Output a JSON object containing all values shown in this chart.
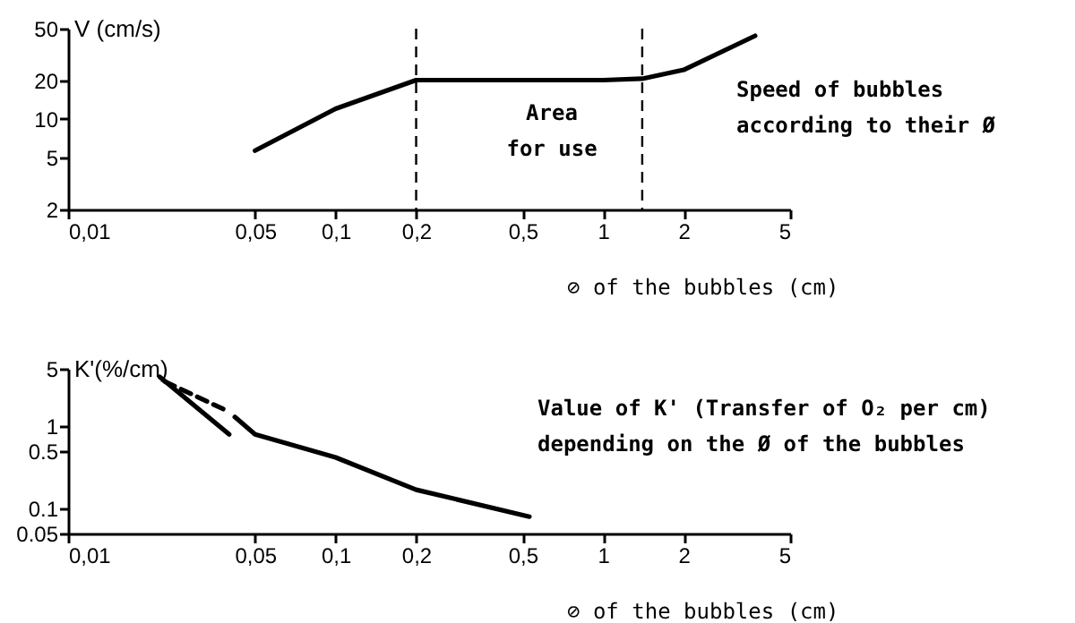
{
  "chart_data": [
    {
      "type": "line",
      "ylabel": "V (cm/s)",
      "xlabel": "⊘ of the bubbles (cm)",
      "log": "xy",
      "xlim": [
        0.01,
        5
      ],
      "xticks": [
        {
          "value": 0.01,
          "label": "0,01"
        },
        {
          "value": 0.05,
          "label": "0,05"
        },
        {
          "value": 0.1,
          "label": "0,1"
        },
        {
          "value": 0.2,
          "label": "0,2"
        },
        {
          "value": 0.5,
          "label": "0,5"
        },
        1,
        2,
        5
      ],
      "ylim": [
        2,
        50
      ],
      "yticks": [
        2,
        5,
        10,
        20,
        50
      ],
      "series": [
        {
          "color": "#000000",
          "x": [
            0.05,
            0.1,
            0.2,
            0.5,
            1,
            1.4,
            2,
            3.7
          ],
          "values": [
            5.7,
            12,
            20,
            20,
            20,
            20.5,
            24,
            44
          ]
        }
      ],
      "ref_lines": [
        {
          "axis": "x",
          "value": 0.2,
          "line_style": "dashed"
        },
        {
          "axis": "x",
          "value": 1.4,
          "line_style": "dashed"
        }
      ],
      "annotations": [
        "Area for use",
        "Speed of bubbles according to their Ø"
      ]
    },
    {
      "type": "line",
      "ylabel": "K'(%/cm)",
      "xlabel": "⊘ of the bubbles (cm)",
      "log": "xy",
      "xlim": [
        0.01,
        5
      ],
      "xticks": [
        {
          "value": 0.01,
          "label": "0,01"
        },
        {
          "value": 0.05,
          "label": "0,05"
        },
        {
          "value": 0.1,
          "label": "0,1"
        },
        {
          "value": 0.2,
          "label": "0,2"
        },
        {
          "value": 0.5,
          "label": "0,5"
        },
        1,
        2,
        5
      ],
      "ylim": [
        0.05,
        5
      ],
      "yticks": [
        0.05,
        0.1,
        0.5,
        1,
        5
      ],
      "series": [
        {
          "color": "#000000",
          "x": [
            0.022,
            0.04
          ],
          "values": [
            4,
            0.8
          ]
        },
        {
          "color": "#000000",
          "line_style": "dashed",
          "x": [
            0.023,
            0.04
          ],
          "values": [
            3.5,
            1.5
          ]
        },
        {
          "color": "#000000",
          "x": [
            0.042,
            0.05,
            0.1,
            0.2,
            0.53
          ],
          "values": [
            1.3,
            0.8,
            0.42,
            0.17,
            0.08
          ]
        }
      ],
      "annotations": [
        "Value of K' (Transfer of O₂ per cm) depending on the Ø of the bubbles"
      ]
    }
  ]
}
